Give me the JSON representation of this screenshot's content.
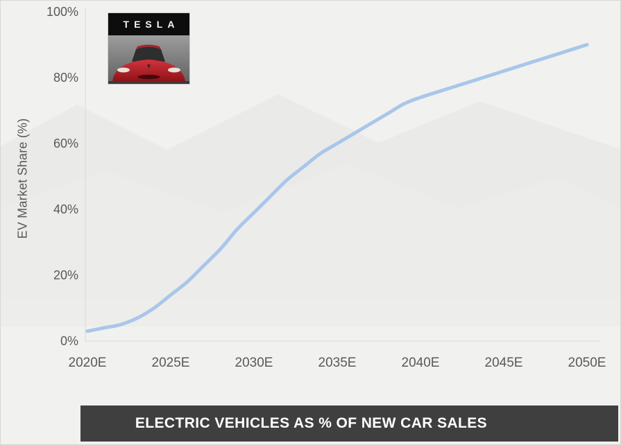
{
  "page": {
    "background_color": "#f1f1ef"
  },
  "logo": {
    "brand": "TESLA"
  },
  "banner": {
    "title": "ELECTRIC VEHICLES AS % OF NEW CAR SALES",
    "background_color": "#3f3f3f",
    "text_color": "#ffffff"
  },
  "chart_data": {
    "type": "line",
    "title": "",
    "xlabel": "",
    "ylabel": "EV Market Share (%)",
    "x_tick_labels": [
      "2020E",
      "2025E",
      "2030E",
      "2035E",
      "2040E",
      "2045E",
      "2050E"
    ],
    "y_tick_labels": [
      "0%",
      "20%",
      "40%",
      "60%",
      "80%",
      "100%"
    ],
    "xlim": [
      2020,
      2050
    ],
    "ylim": [
      0,
      100
    ],
    "grid": false,
    "legend": "none",
    "line_color": "#a9c6ea",
    "axis_color": "#d9d9d9",
    "tick_label_color": "#595959",
    "series": [
      {
        "name": "EV market share of new car sales",
        "x": [
          2020,
          2021,
          2022,
          2023,
          2024,
          2025,
          2026,
          2027,
          2028,
          2029,
          2030,
          2031,
          2032,
          2033,
          2034,
          2035,
          2036,
          2037,
          2038,
          2039,
          2040,
          2042,
          2044,
          2046,
          2048,
          2050
        ],
        "y": [
          3,
          4,
          5,
          7,
          10,
          14,
          18,
          23,
          28,
          34,
          39,
          44,
          49,
          53,
          57,
          60,
          63,
          66,
          69,
          72,
          74,
          77.2,
          80.4,
          83.6,
          86.8,
          90
        ]
      }
    ]
  }
}
